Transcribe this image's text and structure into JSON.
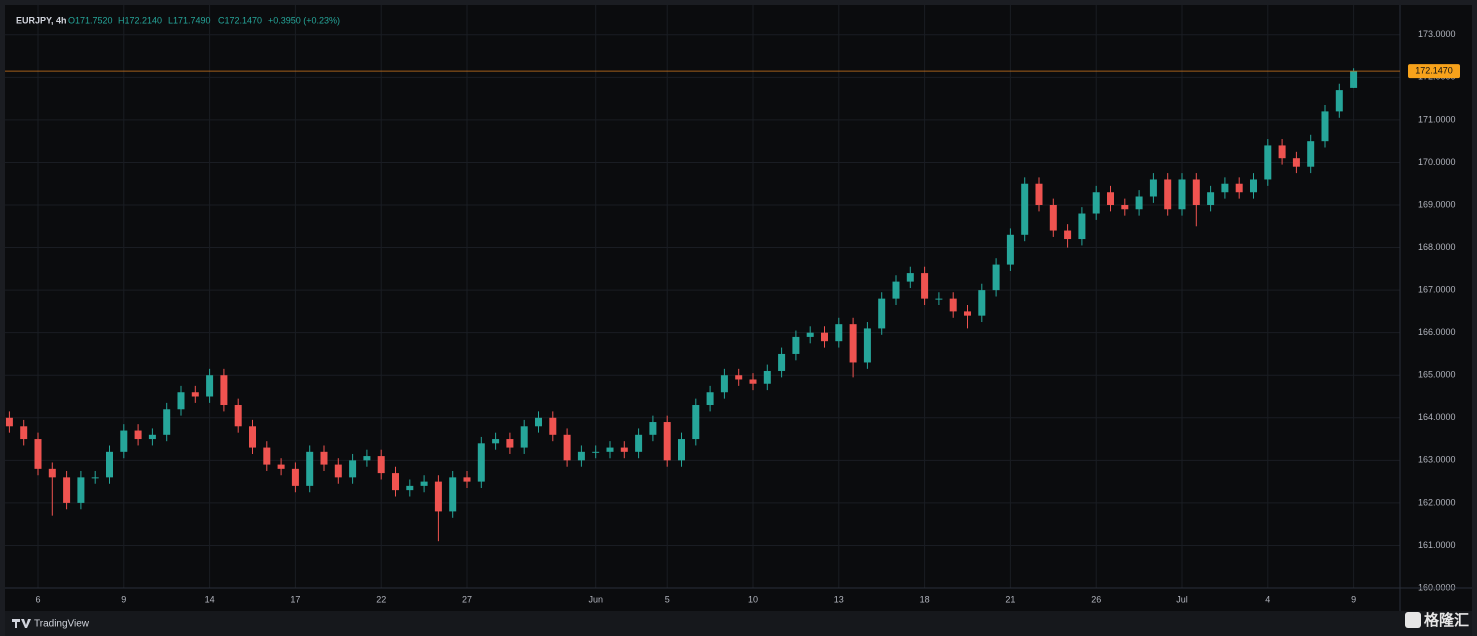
{
  "chart_data": {
    "type": "candlestick",
    "header": {
      "symbol": "EURJPY, 4h",
      "open": "O171.7520",
      "high": "H172.2140",
      "low": "L171.7490",
      "close": "C172.1470",
      "change": "+0.3950 (+0.23%)"
    },
    "categories": [
      null,
      null,
      "6",
      null,
      null,
      null,
      null,
      null,
      "9",
      null,
      null,
      null,
      null,
      null,
      "14",
      null,
      null,
      null,
      null,
      null,
      "17",
      null,
      null,
      null,
      null,
      null,
      "22",
      null,
      null,
      null,
      null,
      null,
      "27",
      null,
      null,
      null,
      null,
      null,
      null,
      null,
      null,
      "Jun",
      null,
      null,
      null,
      null,
      "5",
      null,
      null,
      null,
      null,
      null,
      "10",
      null,
      null,
      null,
      null,
      null,
      "13",
      null,
      null,
      null,
      null,
      null,
      "18",
      null,
      null,
      null,
      null,
      null,
      "21",
      null,
      null,
      null,
      null,
      null,
      "26",
      null,
      null,
      null,
      null,
      null,
      "Jul",
      null,
      null,
      null,
      null,
      null,
      "4",
      null,
      null,
      null,
      null,
      null,
      "9"
    ],
    "open": [
      164.0,
      163.8,
      163.5,
      162.8,
      162.6,
      162.0,
      162.6,
      162.6,
      163.2,
      163.7,
      163.5,
      163.6,
      164.2,
      164.6,
      164.5,
      165.0,
      164.3,
      163.8,
      163.3,
      162.9,
      162.8,
      162.4,
      163.2,
      162.9,
      162.6,
      163.0,
      163.1,
      162.7,
      162.3,
      162.4,
      162.5,
      161.8,
      162.6,
      162.5,
      163.4,
      163.5,
      163.3,
      163.8,
      164.0,
      163.6,
      163.0,
      163.2,
      163.2,
      163.3,
      163.2,
      163.6,
      163.9,
      163.0,
      163.5,
      164.3,
      164.6,
      165.0,
      164.9,
      164.8,
      165.1,
      165.5,
      165.9,
      166.0,
      165.8,
      166.2,
      165.3,
      166.1,
      166.8,
      167.2,
      167.4,
      166.8,
      166.8,
      166.5,
      166.4,
      167.0,
      167.6,
      168.3,
      169.5,
      169.0,
      168.4,
      168.2,
      168.8,
      169.3,
      169.0,
      168.9,
      169.2,
      169.6,
      168.9,
      169.6,
      169.0,
      169.3,
      169.5,
      169.3,
      169.6,
      170.4,
      170.1,
      169.9,
      170.5,
      171.2,
      171.752
    ],
    "high": [
      164.15,
      163.95,
      163.65,
      162.95,
      162.75,
      162.75,
      162.75,
      163.35,
      163.85,
      163.85,
      163.75,
      164.35,
      164.75,
      164.75,
      165.15,
      165.15,
      164.45,
      163.95,
      163.45,
      163.05,
      162.95,
      163.35,
      163.35,
      163.05,
      163.15,
      163.25,
      163.25,
      162.85,
      162.55,
      162.65,
      162.65,
      162.75,
      162.75,
      163.55,
      163.65,
      163.65,
      163.95,
      164.15,
      164.15,
      163.75,
      163.35,
      163.35,
      163.45,
      163.45,
      163.75,
      164.05,
      164.05,
      163.65,
      164.45,
      164.75,
      165.15,
      165.15,
      165.05,
      165.25,
      165.65,
      166.05,
      166.15,
      166.15,
      166.35,
      166.35,
      166.25,
      166.95,
      167.35,
      167.55,
      167.55,
      166.95,
      166.95,
      166.65,
      167.15,
      167.75,
      168.45,
      169.65,
      169.65,
      169.15,
      168.55,
      168.95,
      169.45,
      169.45,
      169.15,
      169.35,
      169.75,
      169.75,
      169.75,
      169.75,
      169.45,
      169.65,
      169.65,
      169.75,
      170.55,
      170.55,
      170.25,
      170.65,
      171.35,
      171.85,
      172.214
    ],
    "low": [
      163.65,
      163.35,
      162.65,
      161.7,
      161.85,
      161.85,
      162.45,
      162.45,
      163.05,
      163.35,
      163.35,
      163.45,
      164.05,
      164.35,
      164.35,
      164.15,
      163.65,
      163.15,
      162.75,
      162.65,
      162.25,
      162.25,
      162.75,
      162.45,
      162.45,
      162.85,
      162.55,
      162.15,
      162.15,
      162.25,
      161.1,
      161.65,
      162.35,
      162.35,
      163.25,
      163.15,
      163.15,
      163.65,
      163.45,
      162.85,
      162.85,
      163.05,
      163.05,
      163.05,
      163.05,
      163.45,
      162.85,
      162.85,
      163.35,
      164.15,
      164.45,
      164.75,
      164.65,
      164.65,
      164.95,
      165.35,
      165.75,
      165.65,
      165.65,
      164.95,
      165.15,
      165.95,
      166.65,
      167.05,
      166.65,
      166.65,
      166.35,
      166.1,
      166.25,
      166.85,
      167.45,
      168.15,
      168.85,
      168.25,
      168.0,
      168.05,
      168.65,
      168.85,
      168.75,
      168.75,
      169.05,
      168.75,
      168.75,
      168.5,
      168.85,
      169.15,
      169.15,
      169.15,
      169.45,
      169.95,
      169.75,
      169.75,
      170.35,
      171.05,
      171.749
    ],
    "close": [
      163.8,
      163.5,
      162.8,
      162.6,
      162.0,
      162.6,
      162.6,
      163.2,
      163.7,
      163.5,
      163.6,
      164.2,
      164.6,
      164.5,
      165.0,
      164.3,
      163.8,
      163.3,
      162.9,
      162.8,
      162.4,
      163.2,
      162.9,
      162.6,
      163.0,
      163.1,
      162.7,
      162.3,
      162.4,
      162.5,
      161.8,
      162.6,
      162.5,
      163.4,
      163.5,
      163.3,
      163.8,
      164.0,
      163.6,
      163.0,
      163.2,
      163.2,
      163.3,
      163.2,
      163.6,
      163.9,
      163.0,
      163.5,
      164.3,
      164.6,
      165.0,
      164.9,
      164.8,
      165.1,
      165.5,
      165.9,
      166.0,
      165.8,
      166.2,
      165.3,
      166.1,
      166.8,
      167.2,
      167.4,
      166.8,
      166.8,
      166.5,
      166.4,
      167.0,
      167.6,
      168.3,
      169.5,
      169.0,
      168.4,
      168.2,
      168.8,
      169.3,
      169.0,
      168.9,
      169.2,
      169.6,
      168.9,
      169.6,
      169.0,
      169.3,
      169.5,
      169.3,
      169.6,
      170.4,
      170.1,
      169.9,
      170.5,
      171.2,
      171.7,
      172.147
    ],
    "up_color": "#26a69a",
    "down_color": "#ef5350",
    "ylim": [
      160,
      173.7
    ],
    "yticks": [
      {
        "value": 160,
        "label": "160.0000"
      },
      {
        "value": 161,
        "label": "161.0000"
      },
      {
        "value": 162,
        "label": "162.0000"
      },
      {
        "value": 163,
        "label": "163.0000"
      },
      {
        "value": 164,
        "label": "164.0000"
      },
      {
        "value": 165,
        "label": "165.0000"
      },
      {
        "value": 166,
        "label": "166.0000"
      },
      {
        "value": 167,
        "label": "167.0000"
      },
      {
        "value": 168,
        "label": "168.0000"
      },
      {
        "value": 169,
        "label": "169.0000"
      },
      {
        "value": 170,
        "label": "170.0000"
      },
      {
        "value": 171,
        "label": "171.0000"
      },
      {
        "value": 172,
        "label": "172.0000"
      },
      {
        "value": 173,
        "label": "173.0000"
      }
    ],
    "last_price": {
      "value": 172.147,
      "label": "172.1470"
    },
    "grid": true,
    "source": "TradingView",
    "watermark": "格隆汇"
  }
}
